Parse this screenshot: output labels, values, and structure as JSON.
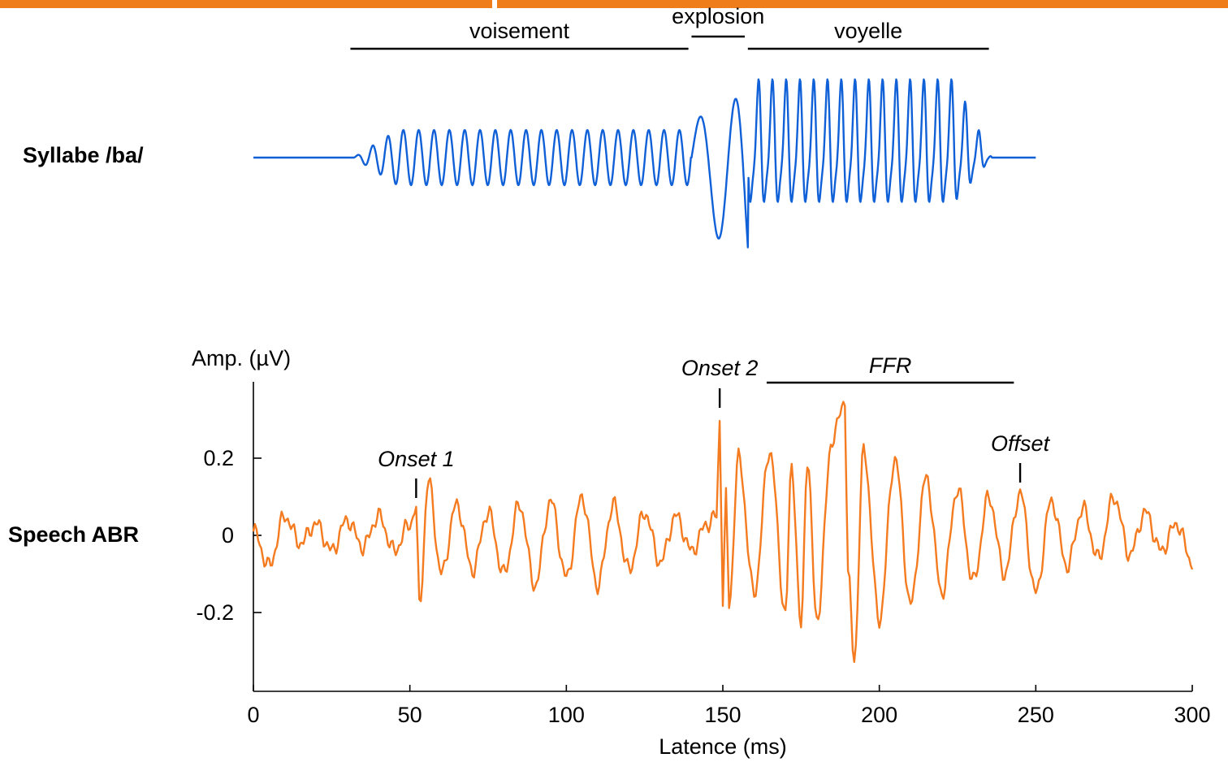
{
  "colors": {
    "header_bar": "#ef7d1a",
    "stimulus": "#1060d8",
    "response": "#f47b20",
    "axis": "#000000"
  },
  "stimulus": {
    "label": "Syllabe /ba/",
    "segments": [
      {
        "label": "voisement",
        "start_ms": 31,
        "end_ms": 139
      },
      {
        "label": "explosion",
        "start_ms": 140,
        "end_ms": 157
      },
      {
        "label": "voyelle",
        "start_ms": 158,
        "end_ms": 235
      }
    ],
    "duration_ms": [
      0,
      250
    ]
  },
  "response": {
    "label": "Speech ABR",
    "annotations": [
      {
        "label": "Onset 1",
        "x_ms": 52
      },
      {
        "label": "Onset 2",
        "x_ms": 149
      },
      {
        "label": "Offset",
        "x_ms": 245
      }
    ],
    "ffr": {
      "label": "FFR",
      "start_ms": 164,
      "end_ms": 243
    }
  },
  "chart_data": {
    "type": "line",
    "xlabel": "Latence (ms)",
    "ylabel": "Amp. (µV)",
    "xlim": [
      0,
      300
    ],
    "ylim": [
      -0.32,
      0.36
    ],
    "x_ticks": [
      0,
      50,
      100,
      150,
      200,
      250,
      300
    ],
    "y_ticks": [
      {
        "value": 0.2,
        "label": "0.2"
      },
      {
        "value": 0,
        "label": "0"
      },
      {
        "value": -0.2,
        "label": "-0.2"
      }
    ],
    "grid": false,
    "series": [
      {
        "label": "Speech ABR",
        "x": [
          0,
          5,
          10,
          15,
          20,
          25,
          30,
          35,
          40,
          45,
          50,
          52,
          53,
          56,
          60,
          65,
          70,
          75,
          80,
          85,
          90,
          95,
          100,
          105,
          110,
          115,
          120,
          125,
          130,
          135,
          140,
          145,
          148,
          149,
          150,
          151,
          152,
          155,
          160,
          165,
          170,
          172,
          175,
          177,
          180,
          185,
          189,
          190,
          192,
          195,
          200,
          205,
          210,
          215,
          220,
          225,
          230,
          235,
          240,
          245,
          250,
          255,
          260,
          265,
          270,
          275,
          280,
          285,
          290,
          295,
          300
        ],
        "y": [
          0.01,
          -0.08,
          0.05,
          -0.02,
          0.03,
          -0.04,
          0.04,
          -0.03,
          0.05,
          -0.04,
          0.03,
          0.07,
          -0.18,
          0.14,
          -0.1,
          0.08,
          -0.09,
          0.06,
          -0.1,
          0.08,
          -0.13,
          0.09,
          -0.11,
          0.1,
          -0.13,
          0.08,
          -0.09,
          0.06,
          -0.07,
          0.05,
          -0.04,
          0.03,
          0.05,
          0.3,
          -0.17,
          0.1,
          -0.18,
          0.2,
          -0.15,
          0.22,
          -0.2,
          0.18,
          -0.24,
          0.2,
          -0.22,
          0.25,
          0.35,
          -0.1,
          -0.32,
          0.22,
          -0.22,
          0.2,
          -0.18,
          0.15,
          -0.15,
          0.12,
          -0.12,
          0.1,
          -0.1,
          0.11,
          -0.15,
          0.09,
          -0.08,
          0.07,
          -0.06,
          0.1,
          -0.05,
          0.06,
          -0.04,
          0.03,
          -0.07
        ]
      }
    ]
  }
}
